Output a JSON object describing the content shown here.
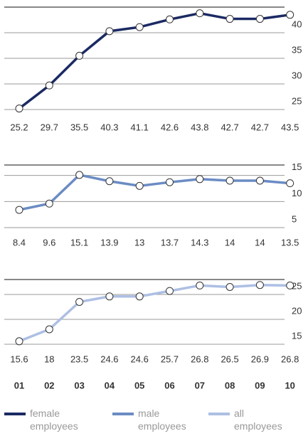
{
  "chart_data": [
    {
      "type": "line",
      "series": [
        {
          "name": "female employees",
          "color": "#1b2a63",
          "values": [
            25.2,
            29.7,
            35.5,
            40.3,
            41.1,
            42.6,
            43.8,
            42.7,
            42.7,
            43.5
          ]
        }
      ],
      "ylim": [
        25,
        45
      ],
      "yticks": [
        25,
        30,
        35,
        40
      ]
    },
    {
      "type": "line",
      "series": [
        {
          "name": "male employees",
          "color": "#6b8cc4",
          "values": [
            8.4,
            9.6,
            15.1,
            13.9,
            13.0,
            13.7,
            14.3,
            14.0,
            14.0,
            13.5
          ]
        }
      ],
      "ylim": [
        5,
        17
      ],
      "yticks": [
        5,
        10,
        15
      ]
    },
    {
      "type": "line",
      "series": [
        {
          "name": "all employees",
          "color": "#adbfe3",
          "values": [
            15.6,
            18.0,
            23.5,
            24.6,
            24.6,
            25.7,
            26.8,
            26.5,
            26.9,
            26.8
          ]
        }
      ],
      "ylim": [
        15,
        28
      ],
      "yticks": [
        15,
        20,
        25
      ],
      "categories": [
        "01",
        "02",
        "03",
        "04",
        "05",
        "06",
        "07",
        "08",
        "09",
        "10"
      ]
    }
  ]
}
